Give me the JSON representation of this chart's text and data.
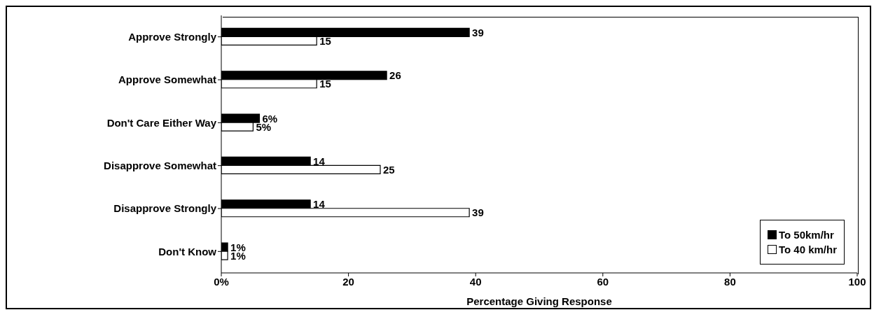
{
  "chart_data": {
    "type": "bar",
    "orientation": "horizontal",
    "xlabel": "Percentage Giving Response",
    "categories": [
      "Approve Strongly",
      "Approve Somewhat",
      "Don't Care Either Way",
      "Disapprove Somewhat",
      "Disapprove Strongly",
      "Don't Know"
    ],
    "series": [
      {
        "name": "To 50km/hr",
        "color": "#000000",
        "values": [
          39,
          26,
          6,
          14,
          14,
          1
        ],
        "value_labels": [
          "39",
          "26",
          "6%",
          "14",
          "14",
          "1%"
        ]
      },
      {
        "name": "To 40 km/hr",
        "color": "#ffffff",
        "values": [
          15,
          15,
          5,
          25,
          39,
          1
        ],
        "value_labels": [
          "15",
          "15",
          "5%",
          "25",
          "39",
          "1%"
        ]
      }
    ],
    "xlim": [
      0,
      100
    ],
    "xticks": [
      {
        "value": 0,
        "label": "0%"
      },
      20,
      40,
      60,
      80,
      100
    ],
    "grid": false,
    "legend": "bottom right"
  }
}
